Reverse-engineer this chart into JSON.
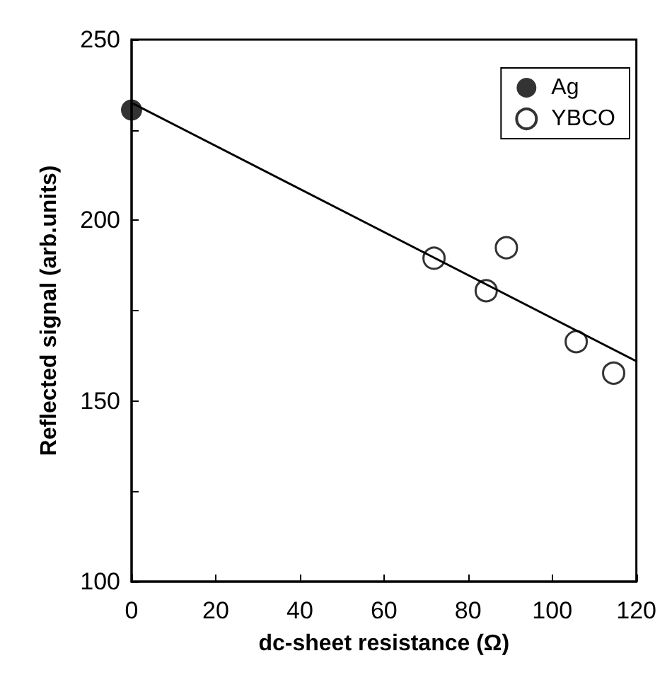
{
  "chart_data": {
    "type": "scatter",
    "xlabel": "dc-sheet resistance (Ω)",
    "ylabel": "Reflected signal (arb.units)",
    "xlim": [
      0,
      120
    ],
    "xticks": [
      0,
      20,
      40,
      60,
      80,
      100,
      120
    ],
    "ylim": [
      100,
      250
    ],
    "yticks": [
      100,
      {
        "value": 125,
        "label": null
      },
      150,
      {
        "value": 175,
        "label": null
      },
      200,
      {
        "value": 225,
        "label": null
      },
      250
    ],
    "legend": "top right",
    "grid": false,
    "series": [
      {
        "name": "Ag",
        "marker": "circle",
        "color": "#000000",
        "x": [
          0
        ],
        "values": [
          230.5
        ]
      },
      {
        "name": "YBCO",
        "marker": "circle",
        "color": "#000000",
        "x": [
          71.9,
          84.3,
          89.1,
          105.7,
          114.6
        ],
        "values": [
          189.5,
          180.5,
          192.4,
          166.4,
          157.7
        ]
      },
      {
        "type": "line",
        "marker": "none",
        "line_style": "solid",
        "color": "#000000",
        "x": [
          0,
          120
        ],
        "values": [
          232.5,
          161
        ]
      }
    ]
  }
}
